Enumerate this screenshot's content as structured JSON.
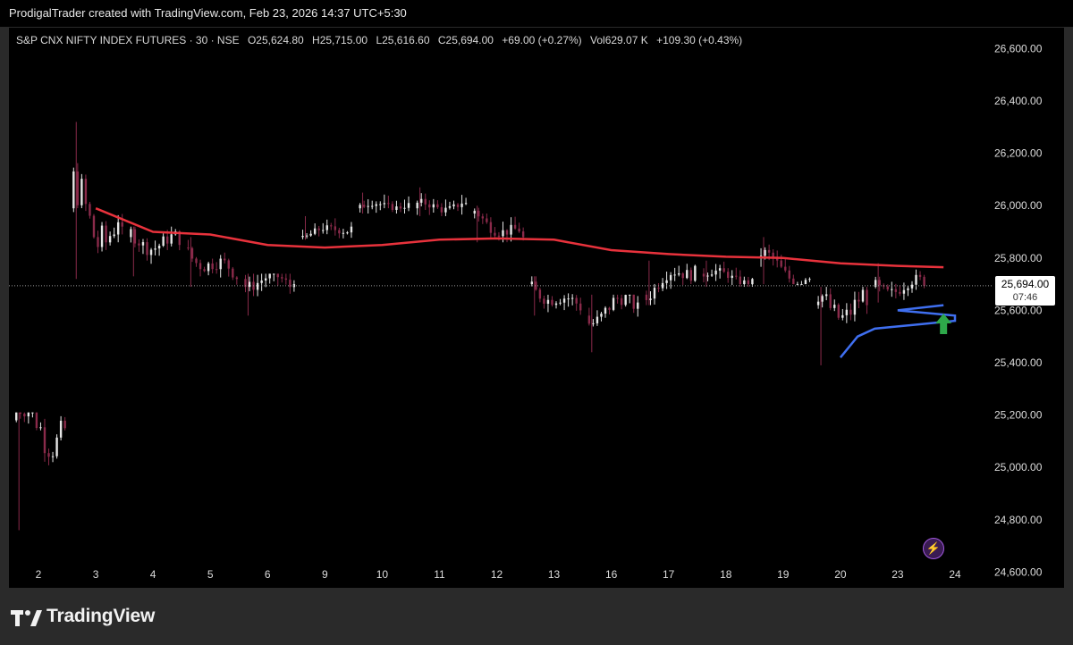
{
  "header": {
    "caption": "ProdigalTrader created with TradingView.com, Feb 23, 2026 14:37 UTC+5:30"
  },
  "legend": {
    "symbol": "S&P CNX NIFTY INDEX FUTURES · 30 · NSE",
    "open_label": "O",
    "open": "25,624.80",
    "high_label": "H",
    "high": "25,715.00",
    "low_label": "L",
    "low": "25,616.60",
    "close_label": "C",
    "close": "25,694.00",
    "change": "+69.00 (+0.27%)",
    "vol_label": "Vol",
    "vol": "629.07 K",
    "extra": "+109.30 (+0.43%)"
  },
  "price_tag": {
    "price": "25,694.00",
    "countdown": "07:46"
  },
  "footer": {
    "brand": "TradingView"
  },
  "colors": {
    "bull": "#e6e6e6",
    "bear": "#8a2a4a",
    "red_line": "#e8323c",
    "blue_line": "#3f6ff0",
    "arrow": "#2ea84a",
    "grid_text": "#dcdcdc"
  },
  "icons": {
    "alert": "lightning-bolt-icon",
    "signal": "green-up-arrow-icon",
    "logo": "tradingview-logo-icon"
  },
  "chart_data": {
    "type": "candlestick",
    "title": "",
    "y_ticks": [
      24600,
      24800,
      25000,
      25200,
      25400,
      25600,
      25800,
      26000,
      26200,
      26400,
      26600
    ],
    "y_tick_labels": [
      "24,600.00",
      "24,800.00",
      "25,000.00",
      "25,200.00",
      "25,400.00",
      "25,600.00",
      "25,800.00",
      "26,000.00",
      "26,200.00",
      "26,400.00",
      "26,600.00"
    ],
    "ylim": [
      24540,
      26680
    ],
    "x_labels": [
      "2",
      "3",
      "4",
      "5",
      "6",
      "9",
      "10",
      "11",
      "12",
      "13",
      "16",
      "17",
      "18",
      "19",
      "20",
      "23",
      "24"
    ],
    "last_price": 25694,
    "days": [
      {
        "label": "2",
        "open": 25180,
        "close": 25150,
        "high": 25210,
        "low": 24760
      },
      {
        "label": "3",
        "open": 25990,
        "close": 25920,
        "high": 26320,
        "low": 25720
      },
      {
        "label": "4",
        "open": 25880,
        "close": 25850,
        "high": 25920,
        "low": 25730
      },
      {
        "label": "5",
        "open": 25840,
        "close": 25720,
        "high": 25880,
        "low": 25690
      },
      {
        "label": "6",
        "open": 25720,
        "close": 25700,
        "high": 25740,
        "low": 25580
      },
      {
        "label": "9",
        "open": 25880,
        "close": 25920,
        "high": 25960,
        "low": 25870
      },
      {
        "label": "10",
        "open": 25990,
        "close": 26010,
        "high": 26050,
        "low": 25970
      },
      {
        "label": "11",
        "open": 25990,
        "close": 26010,
        "high": 26070,
        "low": 25960
      },
      {
        "label": "12",
        "open": 25970,
        "close": 25880,
        "high": 26000,
        "low": 25860
      },
      {
        "label": "13",
        "open": 25700,
        "close": 25600,
        "high": 25730,
        "low": 25580
      },
      {
        "label": "16",
        "open": 25580,
        "close": 25630,
        "high": 25660,
        "low": 25440
      },
      {
        "label": "17",
        "open": 25660,
        "close": 25770,
        "high": 25790,
        "low": 25620
      },
      {
        "label": "18",
        "open": 25740,
        "close": 25720,
        "high": 25790,
        "low": 25690
      },
      {
        "label": "19",
        "open": 25800,
        "close": 25720,
        "high": 25880,
        "low": 25700
      },
      {
        "label": "20",
        "open": 25620,
        "close": 25620,
        "high": 25690,
        "low": 25390
      },
      {
        "label": "23",
        "open": 25690,
        "close": 25694,
        "high": 25780,
        "low": 25630
      }
    ],
    "series": [
      {
        "name": "",
        "color": "#e8323c",
        "x": [
          3,
          4,
          5,
          6,
          9,
          10,
          11,
          12,
          13,
          16,
          17,
          18,
          19,
          20,
          23,
          23.8
        ],
        "y": [
          25990,
          25900,
          25890,
          25850,
          25840,
          25850,
          25870,
          25875,
          25870,
          25830,
          25815,
          25805,
          25800,
          25780,
          25770,
          25765
        ]
      },
      {
        "name": "",
        "color": "#3f6ff0",
        "x": [
          20,
          20.3,
          20.6,
          21,
          22,
          23,
          23.8
        ],
        "y": [
          25420,
          25500,
          25530,
          25560,
          25580,
          25600,
          25620
        ]
      }
    ]
  }
}
